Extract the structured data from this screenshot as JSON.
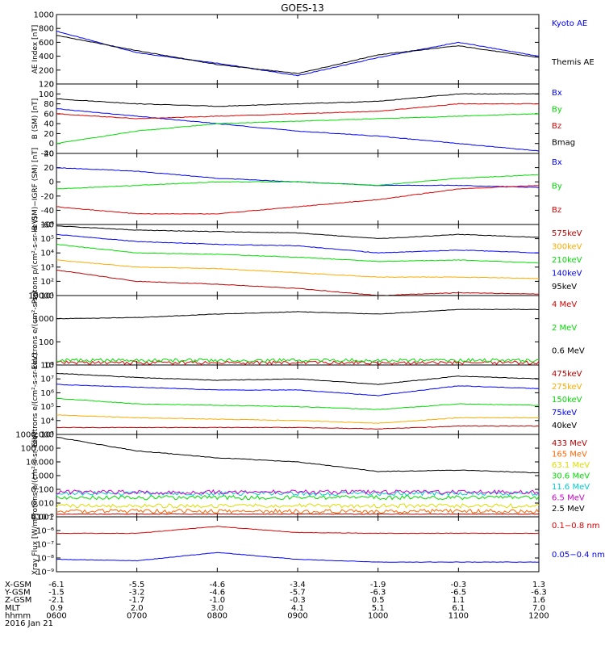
{
  "title": "GOES-13",
  "x_rows": [
    {
      "label": "X-GSM",
      "values": [
        "-6.1",
        "-5.5",
        "-4.6",
        "-3.4",
        "-1.9",
        "-0.3",
        "1.3"
      ]
    },
    {
      "label": "Y-GSM",
      "values": [
        "-1.5",
        "-3.2",
        "-4.6",
        "-5.7",
        "-6.3",
        "-6.5",
        "-6.3"
      ]
    },
    {
      "label": "Z-GSM",
      "values": [
        "-2.1",
        "-1.7",
        "-1.0",
        "-0.3",
        "0.5",
        "1.1",
        "1.6"
      ]
    },
    {
      "label": "MLT",
      "values": [
        "0.9",
        "2.0",
        "3.0",
        "4.1",
        "5.1",
        "6.1",
        "7.0"
      ]
    },
    {
      "label": "hhmm",
      "values": [
        "0600",
        "0700",
        "0800",
        "0900",
        "1000",
        "1100",
        "1200"
      ]
    }
  ],
  "date": "2016 Jan 21",
  "colors": {
    "black": "#000000",
    "blue": "#0000ff",
    "green": "#00dd00",
    "red": "#dd0000",
    "orange": "#ffaa00",
    "yellow": "#dddd00",
    "cyan": "#00cccc",
    "magenta": "#cc00cc",
    "crimson": "#bb0000"
  },
  "chart_data": [
    {
      "type": "line",
      "ylabel": "AE Index [nT]",
      "yticks": [
        "1000",
        "800",
        "600",
        "400",
        "200",
        "0"
      ],
      "ylim": [
        0,
        1000
      ],
      "log": false,
      "x": [
        "0600",
        "0700",
        "0800",
        "0900",
        "1000",
        "1100",
        "1200"
      ],
      "series": [
        {
          "name": "Kyoto AE",
          "color": "#0000ff",
          "values": [
            760,
            450,
            300,
            120,
            380,
            600,
            400
          ]
        },
        {
          "name": "Themis AE",
          "color": "#000000",
          "values": [
            700,
            480,
            280,
            150,
            420,
            550,
            380
          ]
        }
      ]
    },
    {
      "type": "line",
      "ylabel": "B (SM) [nT]",
      "yticks": [
        "120",
        "100",
        "80",
        "60",
        "40",
        "20",
        "0",
        "-20"
      ],
      "ylim": [
        -20,
        120
      ],
      "log": false,
      "x": [
        "0600",
        "0700",
        "0800",
        "0900",
        "1000",
        "1100",
        "1200"
      ],
      "series": [
        {
          "name": "Bx",
          "color": "#0000ff",
          "values": [
            70,
            55,
            40,
            25,
            15,
            0,
            -15
          ]
        },
        {
          "name": "By",
          "color": "#00dd00",
          "values": [
            0,
            25,
            40,
            45,
            50,
            55,
            60
          ]
        },
        {
          "name": "Bz",
          "color": "#dd0000",
          "values": [
            60,
            50,
            55,
            60,
            65,
            80,
            80
          ]
        },
        {
          "name": "Bmag",
          "color": "#000000",
          "values": [
            90,
            80,
            75,
            80,
            85,
            100,
            100
          ]
        }
      ]
    },
    {
      "type": "line",
      "ylabel": "B (SM)−IGRF (SM) [nT]",
      "yticks": [
        "40",
        "20",
        "0",
        "-20",
        "-40",
        "-60"
      ],
      "ylim": [
        -60,
        40
      ],
      "log": false,
      "x": [
        "0600",
        "0700",
        "0800",
        "0900",
        "1000",
        "1100",
        "1200"
      ],
      "series": [
        {
          "name": "Bx",
          "color": "#0000ff",
          "values": [
            20,
            15,
            5,
            0,
            -5,
            -5,
            -8
          ]
        },
        {
          "name": "By",
          "color": "#00dd00",
          "values": [
            -10,
            -5,
            0,
            0,
            -5,
            5,
            10
          ]
        },
        {
          "name": "Bz",
          "color": "#dd0000",
          "values": [
            -35,
            -45,
            -45,
            -35,
            -25,
            -10,
            -5
          ]
        }
      ]
    },
    {
      "type": "line",
      "ylabel": "Protons p/(cm²-s-sr-keV)",
      "yticks": [
        "10⁶",
        "10⁵",
        "10⁴",
        "10³",
        "10²",
        "10¹"
      ],
      "ylim": [
        1,
        6
      ],
      "log": true,
      "x": [
        "0600",
        "0700",
        "0800",
        "0900",
        "1000",
        "1100",
        "1200"
      ],
      "series": [
        {
          "name": "575keV",
          "color": "#bb0000",
          "values": [
            2.8,
            2.0,
            1.8,
            1.5,
            1.0,
            1.2,
            1.1
          ]
        },
        {
          "name": "300keV",
          "color": "#ffaa00",
          "values": [
            3.5,
            3.0,
            2.9,
            2.6,
            2.3,
            2.3,
            2.2
          ]
        },
        {
          "name": "210keV",
          "color": "#00dd00",
          "values": [
            4.6,
            4.0,
            3.9,
            3.7,
            3.4,
            3.5,
            3.3
          ]
        },
        {
          "name": "140keV",
          "color": "#0000ff",
          "values": [
            5.3,
            4.8,
            4.6,
            4.5,
            4.0,
            4.2,
            4.0
          ]
        },
        {
          "name": "95keV",
          "color": "#000000",
          "values": [
            5.9,
            5.6,
            5.5,
            5.4,
            5.0,
            5.3,
            5.1
          ]
        }
      ]
    },
    {
      "type": "line",
      "ylabel": "Electrons e/(cm²-s-sr)",
      "yticks": [
        "10000",
        "1000",
        "100",
        "10"
      ],
      "ylim": [
        1,
        4
      ],
      "log": true,
      "x": [
        "0600",
        "0700",
        "0800",
        "0900",
        "1000",
        "1100",
        "1200"
      ],
      "series": [
        {
          "name": "4 MeV",
          "color": "#dd0000",
          "values": [
            1.1,
            1.1,
            1.1,
            1.1,
            1.1,
            1.1,
            1.1
          ]
        },
        {
          "name": "2 MeV",
          "color": "#00dd00",
          "values": [
            1.2,
            1.2,
            1.2,
            1.2,
            1.2,
            1.2,
            1.2
          ]
        },
        {
          "name": "0.6 MeV",
          "color": "#000000",
          "values": [
            3.0,
            3.05,
            3.2,
            3.3,
            3.2,
            3.4,
            3.4
          ]
        }
      ]
    },
    {
      "type": "line",
      "ylabel": "Electrons e/(cm²-s-sr-keV)",
      "yticks": [
        "10⁸",
        "10⁷",
        "10⁶",
        "10⁵",
        "10⁴",
        "10³"
      ],
      "ylim": [
        3,
        8
      ],
      "log": true,
      "x": [
        "0600",
        "0700",
        "0800",
        "0900",
        "1000",
        "1100",
        "1200"
      ],
      "series": [
        {
          "name": "475keV",
          "color": "#bb0000",
          "values": [
            3.5,
            3.5,
            3.5,
            3.5,
            3.4,
            3.6,
            3.6
          ]
        },
        {
          "name": "275keV",
          "color": "#ffaa00",
          "values": [
            4.4,
            4.2,
            4.1,
            4.0,
            3.8,
            4.2,
            4.2
          ]
        },
        {
          "name": "150keV",
          "color": "#00dd00",
          "values": [
            5.6,
            5.2,
            5.1,
            5.0,
            4.8,
            5.2,
            5.1
          ]
        },
        {
          "name": "75keV",
          "color": "#0000ff",
          "values": [
            6.6,
            6.4,
            6.2,
            6.2,
            5.8,
            6.5,
            6.3
          ]
        },
        {
          "name": "40keV",
          "color": "#000000",
          "values": [
            7.4,
            7.1,
            6.9,
            7.0,
            6.6,
            7.2,
            7.0
          ]
        }
      ]
    },
    {
      "type": "line",
      "ylabel": "Protons p/(cm²-s-sr-keV)",
      "yticks": [
        "1000.000",
        "100.000",
        "10.000",
        "1.000",
        "0.100",
        "0.010",
        "0.001"
      ],
      "ylim": [
        -3,
        3
      ],
      "log": true,
      "x": [
        "0600",
        "0700",
        "0800",
        "0900",
        "1000",
        "1100",
        "1200"
      ],
      "series": [
        {
          "name": "433 MeV",
          "color": "#bb0000",
          "values": [
            -2.8,
            -2.8,
            -2.8,
            -2.8,
            -2.8,
            -2.8,
            -2.8
          ]
        },
        {
          "name": "165 MeV",
          "color": "#ff6600",
          "values": [
            -2.6,
            -2.6,
            -2.6,
            -2.6,
            -2.6,
            -2.6,
            -2.6
          ]
        },
        {
          "name": "63.1 MeV",
          "color": "#dddd00",
          "values": [
            -2.2,
            -2.2,
            -2.2,
            -2.2,
            -2.2,
            -2.2,
            -2.2
          ]
        },
        {
          "name": "30.6 MeV",
          "color": "#00dd00",
          "values": [
            -1.6,
            -1.6,
            -1.6,
            -1.6,
            -1.6,
            -1.6,
            -1.6
          ]
        },
        {
          "name": "11.6 MeV",
          "color": "#00cccc",
          "values": [
            -1.3,
            -1.3,
            -1.3,
            -1.3,
            -1.3,
            -1.3,
            -1.3
          ]
        },
        {
          "name": "6.5 MeV",
          "color": "#cc00cc",
          "values": [
            -1.2,
            -1.2,
            -1.2,
            -1.2,
            -1.2,
            -1.2,
            -1.2
          ]
        },
        {
          "name": "2.5 MeV",
          "color": "#000000",
          "values": [
            2.8,
            1.8,
            1.3,
            1.0,
            0.3,
            0.4,
            0.2
          ]
        }
      ]
    },
    {
      "type": "line",
      "ylabel": "Xray Flux [W/m²]",
      "yticks": [
        "10⁻⁵",
        "10⁻⁶",
        "10⁻⁷",
        "10⁻⁸",
        "10⁻⁹"
      ],
      "ylim": [
        -9,
        -5
      ],
      "log": true,
      "x": [
        "0600",
        "0700",
        "0800",
        "0900",
        "1000",
        "1100",
        "1200"
      ],
      "series": [
        {
          "name": "0.1−0.8 nm",
          "color": "#dd0000",
          "values": [
            -6.2,
            -6.2,
            -5.7,
            -6.15,
            -6.2,
            -6.2,
            -6.2
          ]
        },
        {
          "name": "0.05−0.4 nm",
          "color": "#0000ff",
          "values": [
            -8.1,
            -8.2,
            -7.6,
            -8.1,
            -8.3,
            -8.3,
            -8.3
          ]
        }
      ]
    }
  ]
}
